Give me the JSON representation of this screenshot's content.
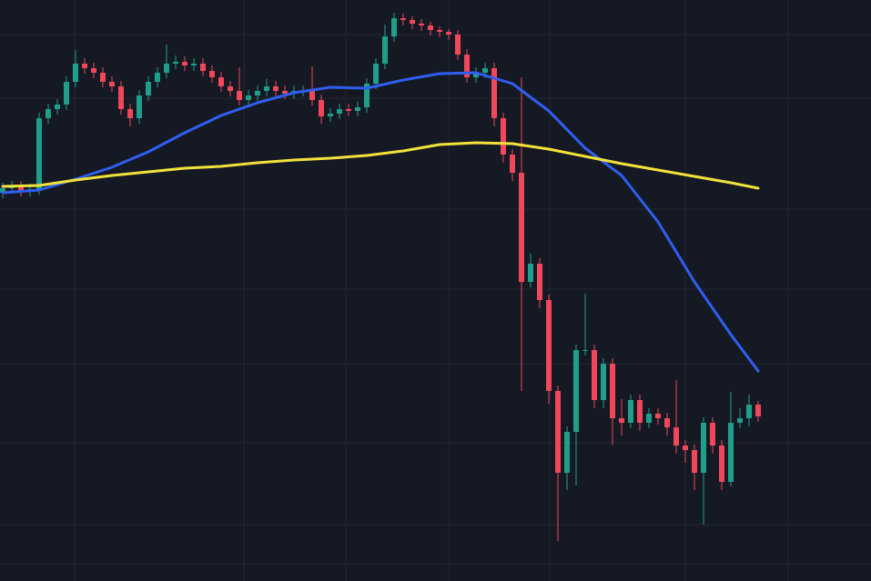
{
  "chart_data": {
    "type": "candlestick",
    "background": "#151924",
    "up_color": "#1f9e89",
    "down_color": "#f0475a",
    "grid": true,
    "grid_color": "#222733",
    "xlim": [
      -0.3,
      95.4
    ],
    "ylim": [
      0,
      639
    ],
    "xticks": [
      7.9,
      26.5,
      37.7,
      49,
      60.1,
      75,
      86.3
    ],
    "yticks": [
      601,
      531,
      409,
      321,
      239,
      152,
      62,
      19
    ],
    "open": [
      427,
      432,
      434,
      429,
      431,
      509,
      519,
      524,
      549,
      569,
      564,
      559,
      549,
      544,
      519,
      509,
      534,
      549,
      559,
      569,
      571,
      567,
      569,
      561,
      554,
      544,
      539,
      529,
      534,
      539,
      544,
      539,
      536,
      539,
      539,
      529,
      511,
      514,
      519,
      517,
      521,
      547,
      569,
      599,
      619,
      617,
      613,
      611,
      606,
      604,
      601,
      579,
      554,
      559,
      564,
      509,
      469,
      449,
      329,
      349,
      309,
      209,
      119,
      164,
      254,
      254,
      199,
      239,
      179,
      174,
      199,
      174,
      184,
      179,
      169,
      149,
      144,
      119,
      174,
      149,
      109,
      174,
      179,
      194
    ],
    "high": [
      438,
      440,
      440,
      437,
      515,
      525,
      530,
      555,
      584,
      575,
      570,
      565,
      555,
      550,
      525,
      540,
      555,
      565,
      590,
      578,
      577,
      575,
      575,
      567,
      560,
      550,
      565,
      540,
      545,
      552,
      550,
      545,
      545,
      545,
      566,
      535,
      520,
      525,
      525,
      527,
      553,
      575,
      612,
      625,
      624,
      621,
      618,
      615,
      610,
      607,
      606,
      585,
      565,
      570,
      570,
      515,
      475,
      554,
      360,
      355,
      315,
      215,
      170,
      260,
      316,
      260,
      245,
      245,
      200,
      205,
      205,
      190,
      190,
      185,
      221,
      155,
      150,
      180,
      180,
      155,
      208,
      190,
      205,
      198
    ],
    "low": [
      421,
      426,
      423,
      423,
      425,
      503,
      513,
      518,
      543,
      558,
      553,
      543,
      538,
      513,
      500,
      503,
      528,
      543,
      553,
      563,
      561,
      561,
      555,
      548,
      538,
      533,
      523,
      523,
      528,
      533,
      533,
      530,
      530,
      533,
      523,
      503,
      505,
      508,
      511,
      511,
      515,
      541,
      563,
      593,
      611,
      607,
      605,
      600,
      598,
      595,
      573,
      548,
      548,
      553,
      500,
      460,
      440,
      209,
      323,
      300,
      195,
      44,
      100,
      105,
      248,
      190,
      190,
      150,
      160,
      168,
      165,
      168,
      172,
      160,
      140,
      130,
      100,
      62,
      140,
      100,
      104,
      168,
      170,
      175
    ],
    "close": [
      432,
      434,
      429,
      431,
      509,
      519,
      524,
      549,
      569,
      564,
      559,
      549,
      544,
      519,
      509,
      534,
      549,
      559,
      569,
      571,
      567,
      569,
      561,
      554,
      544,
      539,
      529,
      534,
      539,
      544,
      539,
      536,
      539,
      539,
      529,
      511,
      514,
      519,
      517,
      521,
      547,
      569,
      599,
      619,
      617,
      613,
      611,
      606,
      604,
      601,
      579,
      554,
      559,
      564,
      509,
      469,
      449,
      329,
      349,
      309,
      209,
      119,
      164,
      254,
      254,
      199,
      239,
      179,
      174,
      199,
      174,
      184,
      179,
      169,
      149,
      144,
      119,
      174,
      149,
      109,
      174,
      179,
      194,
      181
    ],
    "series": [
      {
        "color": "#2f5ef0",
        "x": [
          0,
          4,
          8,
          12,
          16,
          20,
          24,
          28,
          32,
          36,
          40,
          44,
          48,
          52,
          56,
          60,
          64,
          68,
          72,
          76,
          80,
          83
        ],
        "values": [
          427,
          430,
          442,
          455,
          472,
          493,
          512,
          526,
          537,
          543,
          542,
          551,
          558,
          559,
          547,
          517,
          476,
          446,
          395,
          329,
          271,
          231
        ]
      },
      {
        "color": "#f2e33a",
        "x": [
          0,
          4,
          8,
          12,
          16,
          20,
          24,
          28,
          32,
          36,
          40,
          44,
          48,
          52,
          56,
          60,
          64,
          68,
          72,
          76,
          80,
          83
        ],
        "values": [
          434,
          435,
          441,
          446,
          450,
          454,
          456,
          460,
          463,
          465,
          468,
          473,
          480,
          482,
          481,
          475,
          467,
          459,
          452,
          445,
          438,
          432
        ]
      }
    ]
  }
}
